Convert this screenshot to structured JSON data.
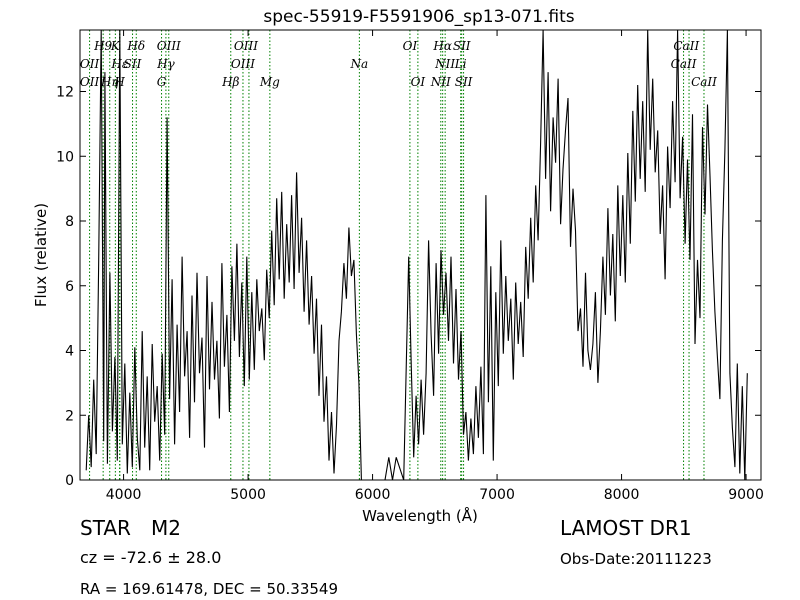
{
  "chart_data": {
    "type": "line",
    "title": "spec-55919-F5591906_sp13-071.fits",
    "xlabel": "Wavelength (Å)",
    "ylabel": "Flux (relative)",
    "xlim": [
      3650,
      9120
    ],
    "ylim": [
      0,
      13.9
    ],
    "grid": false,
    "legend": "none",
    "line_color": "#000000",
    "marker_color": "#008000",
    "x_ticks": [
      4000,
      5000,
      6000,
      7000,
      8000,
      9000
    ],
    "x_tick_labels": [
      "4000",
      "5000",
      "6000",
      "7000",
      "8000",
      "9000"
    ],
    "y_ticks": [
      0,
      2,
      4,
      6,
      8,
      10,
      12
    ],
    "y_tick_labels": [
      "0",
      "2",
      "4",
      "6",
      "8",
      "10",
      "12"
    ],
    "series": [
      {
        "values_x": [
          3700,
          3720,
          3740,
          3760,
          3780,
          3800,
          3820,
          3840,
          3850,
          3870,
          3890,
          3910,
          3930,
          3950,
          3970,
          3990,
          4010,
          4030,
          4050,
          4070,
          4090,
          4110,
          4130,
          4150,
          4170,
          4190,
          4210,
          4230,
          4250,
          4270,
          4290,
          4310,
          4330,
          4350,
          4370,
          4390,
          4410,
          4430,
          4450,
          4470,
          4490,
          4510,
          4530,
          4550,
          4570,
          4590,
          4610,
          4630,
          4650,
          4670,
          4690,
          4710,
          4730,
          4750,
          4770,
          4790,
          4810,
          4830,
          4850,
          4870,
          4890,
          4910,
          4930,
          4950,
          4970,
          4990,
          5010,
          5030,
          5050,
          5070,
          5090,
          5110,
          5130,
          5150,
          5170,
          5190,
          5210,
          5230,
          5250,
          5270,
          5290,
          5310,
          5330,
          5350,
          5370,
          5390,
          5410,
          5430,
          5450,
          5470,
          5490,
          5510,
          5530,
          5550,
          5570,
          5590,
          5610,
          5630,
          5650,
          5670,
          5690,
          5710,
          5730,
          5750,
          5770,
          5790,
          5810,
          5830,
          5850,
          5870,
          5890,
          5910,
          5930,
          6100,
          6130,
          6160,
          6190,
          6250,
          6290,
          6310,
          6330,
          6350,
          6370,
          6390,
          6410,
          6430,
          6450,
          6470,
          6490,
          6510,
          6530,
          6550,
          6570,
          6590,
          6610,
          6630,
          6650,
          6670,
          6690,
          6710,
          6730,
          6750,
          6770,
          6790,
          6810,
          6830,
          6850,
          6870,
          6890,
          6910,
          6930,
          6950,
          6970,
          6990,
          7010,
          7030,
          7050,
          7070,
          7090,
          7110,
          7130,
          7150,
          7170,
          7190,
          7210,
          7230,
          7250,
          7270,
          7290,
          7310,
          7330,
          7350,
          7370,
          7390,
          7410,
          7430,
          7450,
          7470,
          7490,
          7510,
          7530,
          7550,
          7570,
          7590,
          7610,
          7630,
          7650,
          7670,
          7690,
          7710,
          7730,
          7750,
          7770,
          7790,
          7810,
          7830,
          7850,
          7870,
          7890,
          7910,
          7930,
          7950,
          7970,
          7990,
          8010,
          8030,
          8050,
          8070,
          8090,
          8110,
          8130,
          8150,
          8170,
          8190,
          8210,
          8230,
          8250,
          8270,
          8290,
          8310,
          8330,
          8350,
          8370,
          8390,
          8410,
          8430,
          8450,
          8470,
          8490,
          8510,
          8530,
          8550,
          8570,
          8590,
          8610,
          8630,
          8650,
          8670,
          8690,
          8710,
          8730,
          8750,
          8770,
          8790,
          8810,
          8830,
          8850,
          8870,
          8890,
          8910,
          8930,
          8950,
          8970,
          8990,
          9010
        ],
        "values_y": [
          0.3,
          2.0,
          0.4,
          3.1,
          0.8,
          6.8,
          13.9,
          1.2,
          12.6,
          0.5,
          6.4,
          1.5,
          3.8,
          0.6,
          13.9,
          1.1,
          3.6,
          0.2,
          2.7,
          0.4,
          4.1,
          1.3,
          0.3,
          4.6,
          1.0,
          3.2,
          0.3,
          4.2,
          1.8,
          2.9,
          0.6,
          3.9,
          1.4,
          11.2,
          2.5,
          6.2,
          1.1,
          4.8,
          2.1,
          6.9,
          3.2,
          4.6,
          1.3,
          5.7,
          2.4,
          6.4,
          3.3,
          4.4,
          1.0,
          6.3,
          2.8,
          5.5,
          3.1,
          4.3,
          1.9,
          6.7,
          3.5,
          5.1,
          2.1,
          6.6,
          4.3,
          7.3,
          3.8,
          6.1,
          2.9,
          6.9,
          3.1,
          5.8,
          3.4,
          6.2,
          4.6,
          5.3,
          3.7,
          6.5,
          5.0,
          7.7,
          5.4,
          8.7,
          6.2,
          8.9,
          5.6,
          7.9,
          6.1,
          8.8,
          5.9,
          9.5,
          6.4,
          8.1,
          5.2,
          7.4,
          4.8,
          6.3,
          3.9,
          5.6,
          2.6,
          4.8,
          1.8,
          3.2,
          0.6,
          2.1,
          0.2,
          1.7,
          4.3,
          5.2,
          6.7,
          5.6,
          7.8,
          6.3,
          6.8,
          4.5,
          3.0,
          0.0,
          0.0,
          0.0,
          0.7,
          0.0,
          0.7,
          0.0,
          6.9,
          3.6,
          0.7,
          2.6,
          1.1,
          3.1,
          1.4,
          3.3,
          7.4,
          4.5,
          2.6,
          6.7,
          3.9,
          7.1,
          5.1,
          6.4,
          4.3,
          6.9,
          3.6,
          5.9,
          3.1,
          4.6,
          1.4,
          2.1,
          0.6,
          1.9,
          0.8,
          2.9,
          1.3,
          3.5,
          0.8,
          8.8,
          2.4,
          6.6,
          0.6,
          5.8,
          2.9,
          7.4,
          3.9,
          6.3,
          4.3,
          5.6,
          3.1,
          6.1,
          4.2,
          5.5,
          3.8,
          7.2,
          5.6,
          8.1,
          6.1,
          9.1,
          7.4,
          10.4,
          13.9,
          9.3,
          12.6,
          8.3,
          11.2,
          9.8,
          12.4,
          7.9,
          9.6,
          10.8,
          11.8,
          7.2,
          9.0,
          7.7,
          4.6,
          5.3,
          3.5,
          6.4,
          4.0,
          3.4,
          4.2,
          5.8,
          3.0,
          4.6,
          6.9,
          5.1,
          8.4,
          5.7,
          7.6,
          4.9,
          9.1,
          6.3,
          8.8,
          6.1,
          10.1,
          7.3,
          11.4,
          8.6,
          12.2,
          9.3,
          11.7,
          8.9,
          13.9,
          10.2,
          12.4,
          9.5,
          10.8,
          7.6,
          9.1,
          6.2,
          10.3,
          8.4,
          11.7,
          9.2,
          13.9,
          8.7,
          10.6,
          7.3,
          9.9,
          6.8,
          11.3,
          4.2,
          6.8,
          5.0,
          10.9,
          8.2,
          11.6,
          9.4,
          7.1,
          5.2,
          3.8,
          2.5,
          7.4,
          10.2,
          13.9,
          3.3,
          1.6,
          0.4,
          3.6,
          0.2,
          2.9,
          0.0,
          3.3
        ]
      }
    ],
    "emission_lines": [
      {
        "name": "OII",
        "wavelength": 3727
      },
      {
        "name": "H9",
        "wavelength": 3836
      },
      {
        "name": "K",
        "wavelength": 3934
      },
      {
        "name": "Hε",
        "wavelength": 3970
      },
      {
        "name": "SII",
        "wavelength": 4072
      },
      {
        "name": "Hδ",
        "wavelength": 4102
      },
      {
        "name": "OIII",
        "wavelength": 4363
      },
      {
        "name": "OIII",
        "wavelength": 4959
      },
      {
        "name": "OIII",
        "wavelength": 5007
      },
      {
        "name": "Mg",
        "wavelength": 5175
      },
      {
        "name": "Na",
        "wavelength": 5894
      },
      {
        "name": "OI",
        "wavelength": 6300
      },
      {
        "name": "OI",
        "wavelength": 6364
      },
      {
        "name": "NII",
        "wavelength": 6548
      },
      {
        "name": "Hα",
        "wavelength": 6563
      },
      {
        "name": "NII",
        "wavelength": 6583
      },
      {
        "name": "SII",
        "wavelength": 6716
      },
      {
        "name": "SII",
        "wavelength": 6731
      },
      {
        "name": "CaII",
        "wavelength": 8498
      },
      {
        "name": "CaII",
        "wavelength": 8542
      },
      {
        "name": "CaII",
        "wavelength": 8662
      }
    ],
    "absorption_lines": [
      {
        "name": "Hη",
        "wavelength": 3889
      },
      {
        "name": "H",
        "wavelength": 3968
      },
      {
        "name": "Hγ",
        "wavelength": 4340
      },
      {
        "name": "G",
        "wavelength": 4305
      },
      {
        "name": "Hβ",
        "wavelength": 4861
      },
      {
        "name": "Li",
        "wavelength": 6708
      }
    ],
    "marker_labels": [
      {
        "text": "H9",
        "wavelength": 3836,
        "row": 1
      },
      {
        "text": "K",
        "wavelength": 3934,
        "row": 1
      },
      {
        "text": "Hδ",
        "wavelength": 4102,
        "row": 1
      },
      {
        "text": "OIII",
        "wavelength": 4363,
        "row": 1
      },
      {
        "text": "OIII",
        "wavelength": 4983,
        "row": 1
      },
      {
        "text": "OI",
        "wavelength": 6300,
        "row": 1
      },
      {
        "text": "Hα",
        "wavelength": 6563,
        "row": 1
      },
      {
        "text": "SII",
        "wavelength": 6716,
        "row": 1
      },
      {
        "text": "CaII",
        "wavelength": 8520,
        "row": 1
      },
      {
        "text": "OII",
        "wavelength": 3727,
        "row": 2
      },
      {
        "text": "Hε",
        "wavelength": 3970,
        "row": 2
      },
      {
        "text": "SII",
        "wavelength": 4072,
        "row": 2
      },
      {
        "text": "Hγ",
        "wavelength": 4340,
        "row": 2
      },
      {
        "text": "OIII",
        "wavelength": 4959,
        "row": 2
      },
      {
        "text": "Na",
        "wavelength": 5894,
        "row": 2
      },
      {
        "text": "NII",
        "wavelength": 6583,
        "row": 2
      },
      {
        "text": "Li",
        "wavelength": 6708,
        "row": 2
      },
      {
        "text": "CaII",
        "wavelength": 8498,
        "row": 2
      },
      {
        "text": "Hη",
        "wavelength": 3889,
        "row": 3
      },
      {
        "text": "OII",
        "wavelength": 3727,
        "row": 3
      },
      {
        "text": "H",
        "wavelength": 3968,
        "row": 3
      },
      {
        "text": "G",
        "wavelength": 4305,
        "row": 3
      },
      {
        "text": "Hβ",
        "wavelength": 4861,
        "row": 3
      },
      {
        "text": "Mg",
        "wavelength": 5175,
        "row": 3
      },
      {
        "text": "OI",
        "wavelength": 6364,
        "row": 3
      },
      {
        "text": "NII",
        "wavelength": 6548,
        "row": 3
      },
      {
        "text": "SII",
        "wavelength": 6731,
        "row": 3
      },
      {
        "text": "CaII",
        "wavelength": 8662,
        "row": 3
      }
    ]
  },
  "info": {
    "class": "STAR",
    "subclass": "M2",
    "cz": "cz = -72.6 ± 28.0",
    "radec": "RA = 169.61478, DEC = 50.33549",
    "survey": "LAMOST DR1",
    "obs_date": "Obs-Date:20111223"
  }
}
